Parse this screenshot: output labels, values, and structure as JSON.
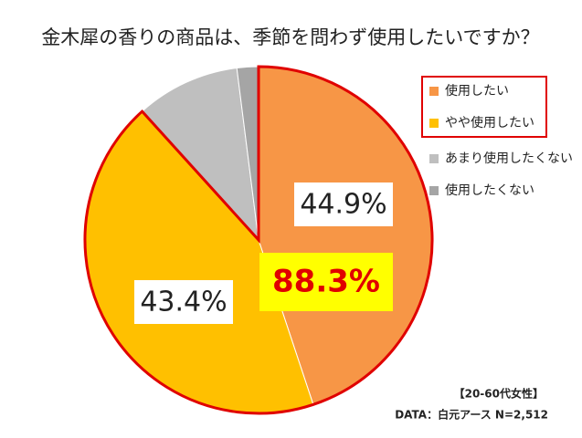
{
  "chart_data": {
    "type": "pie",
    "title": "金木犀の香りの商品は、季節を問わず使用したいですか？",
    "categories": [
      "使用したい",
      "やや使用したい",
      "あまり使用したくない",
      "使用したくない"
    ],
    "values": [
      44.9,
      43.4,
      9.7,
      2.0
    ],
    "value_labels": [
      "44.9%",
      "43.4%",
      null,
      null
    ],
    "colors": [
      "#F79646",
      "#FFC000",
      "#BFBFBF",
      "#A5A5A5"
    ],
    "annotation": "88.3%",
    "notes": [
      "【20-60代女性】",
      "DATA：白元アース N=2,512"
    ],
    "legend": "right"
  }
}
